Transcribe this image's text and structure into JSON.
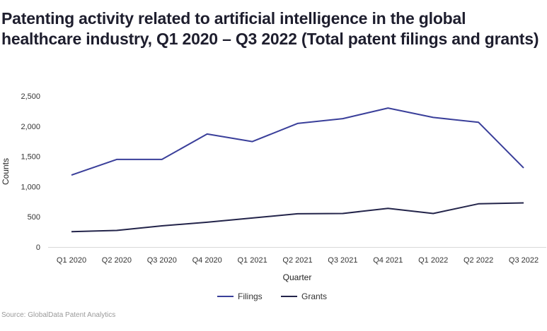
{
  "chart_data": {
    "type": "line",
    "title": "Patenting activity related to artificial intelligence in the global healthcare industry, Q1 2020 – Q3 2022 (Total patent filings and grants)",
    "xlabel": "Quarter",
    "ylabel": "Counts",
    "categories": [
      "Q1 2020",
      "Q2 2020",
      "Q3 2020",
      "Q4 2020",
      "Q1 2021",
      "Q2 2021",
      "Q3 2021",
      "Q4 2021",
      "Q1 2022",
      "Q2 2022",
      "Q3 2022"
    ],
    "series": [
      {
        "name": "Filings",
        "color": "#3a3f9a",
        "values": [
          1190,
          1450,
          1450,
          1870,
          1745,
          2045,
          2125,
          2300,
          2145,
          2065,
          1310
        ]
      },
      {
        "name": "Grants",
        "color": "#23244a",
        "values": [
          255,
          275,
          350,
          410,
          480,
          550,
          555,
          640,
          555,
          715,
          730
        ]
      }
    ],
    "ylim": [
      0,
      2500
    ],
    "yticks": [
      0,
      500,
      1000,
      1500,
      2000,
      2500
    ],
    "ytick_labels": [
      "0",
      "500",
      "1,000",
      "1,500",
      "2,000",
      "2,500"
    ],
    "grid": false,
    "legend": "bottom-center",
    "source": "Source: GlobalData Patent Analytics"
  }
}
